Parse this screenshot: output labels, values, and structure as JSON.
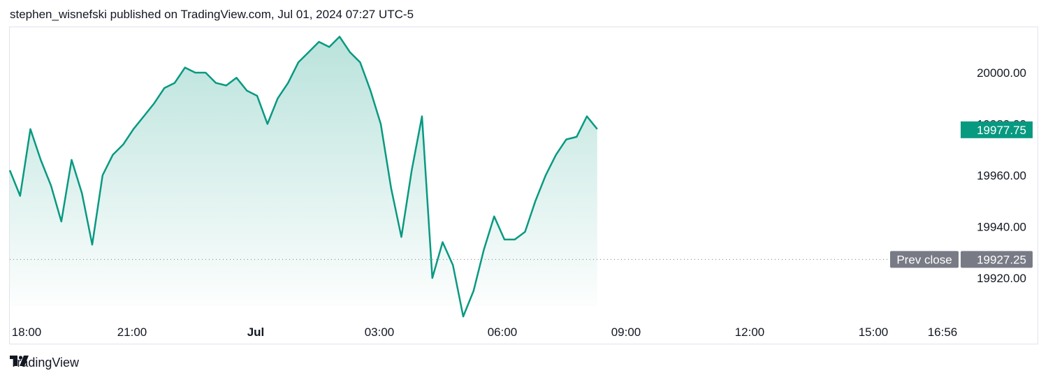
{
  "header": {
    "text": "stephen_wisnefski published on TradingView.com, Jul 01, 2024 07:27 UTC-5"
  },
  "footer": {
    "brand": "TradingView",
    "logo_icon": "tradingview-logo-icon"
  },
  "colors": {
    "line": "#089981",
    "fill": "#089981",
    "prev_close_bg": "#787b86",
    "grid": "#e0e3eb"
  },
  "chart_data": {
    "type": "area",
    "x_tick_labels": [
      "18:00",
      "21:00",
      "Jul",
      "03:00",
      "06:00",
      "09:00",
      "12:00",
      "15:00",
      "16:56"
    ],
    "y_tick_labels": [
      "20000.00",
      "19980.00",
      "19960.00",
      "19940.00",
      "19920.00"
    ],
    "ylim": [
      19905,
      20015
    ],
    "last_price": "19977.75",
    "prev_close": {
      "label": "Prev close",
      "value": "19927.25"
    },
    "series": [
      {
        "x": [
          "18:00",
          "18:15",
          "18:30",
          "18:45",
          "19:00",
          "19:15",
          "19:30",
          "19:45",
          "20:00",
          "20:15",
          "20:30",
          "20:45",
          "21:00",
          "21:15",
          "21:30",
          "21:45",
          "22:00",
          "22:15",
          "22:30",
          "22:45",
          "23:00",
          "23:15",
          "23:30",
          "23:45",
          "00:00",
          "00:15",
          "00:30",
          "00:45",
          "01:00",
          "01:15",
          "01:30",
          "01:45",
          "02:00",
          "02:15",
          "02:30",
          "02:45",
          "03:00",
          "03:15",
          "03:30",
          "03:45",
          "04:00",
          "04:15",
          "04:30",
          "04:45",
          "05:00",
          "05:15",
          "05:30",
          "05:45",
          "06:00",
          "06:15",
          "06:30",
          "06:45",
          "07:00",
          "07:15",
          "07:30",
          "07:45",
          "08:00",
          "08:15"
        ],
        "values": [
          19962,
          19952,
          19978,
          19966,
          19956,
          19942,
          19966,
          19953,
          19933,
          19960,
          19968,
          19972,
          19978,
          19983,
          19988,
          19994,
          19996,
          20002,
          20000,
          20000,
          19996,
          19995,
          19998,
          19993,
          19991,
          19980,
          19990,
          19996,
          20004,
          20008,
          20012,
          20010,
          20014,
          20008,
          20004,
          19993,
          19980,
          19955,
          19936,
          19962,
          19983,
          19920,
          19934,
          19925,
          19905,
          19915,
          19931,
          19944,
          19935,
          19935,
          19938,
          19950,
          19960,
          19968,
          19974,
          19975,
          19983,
          19978
        ]
      }
    ]
  }
}
